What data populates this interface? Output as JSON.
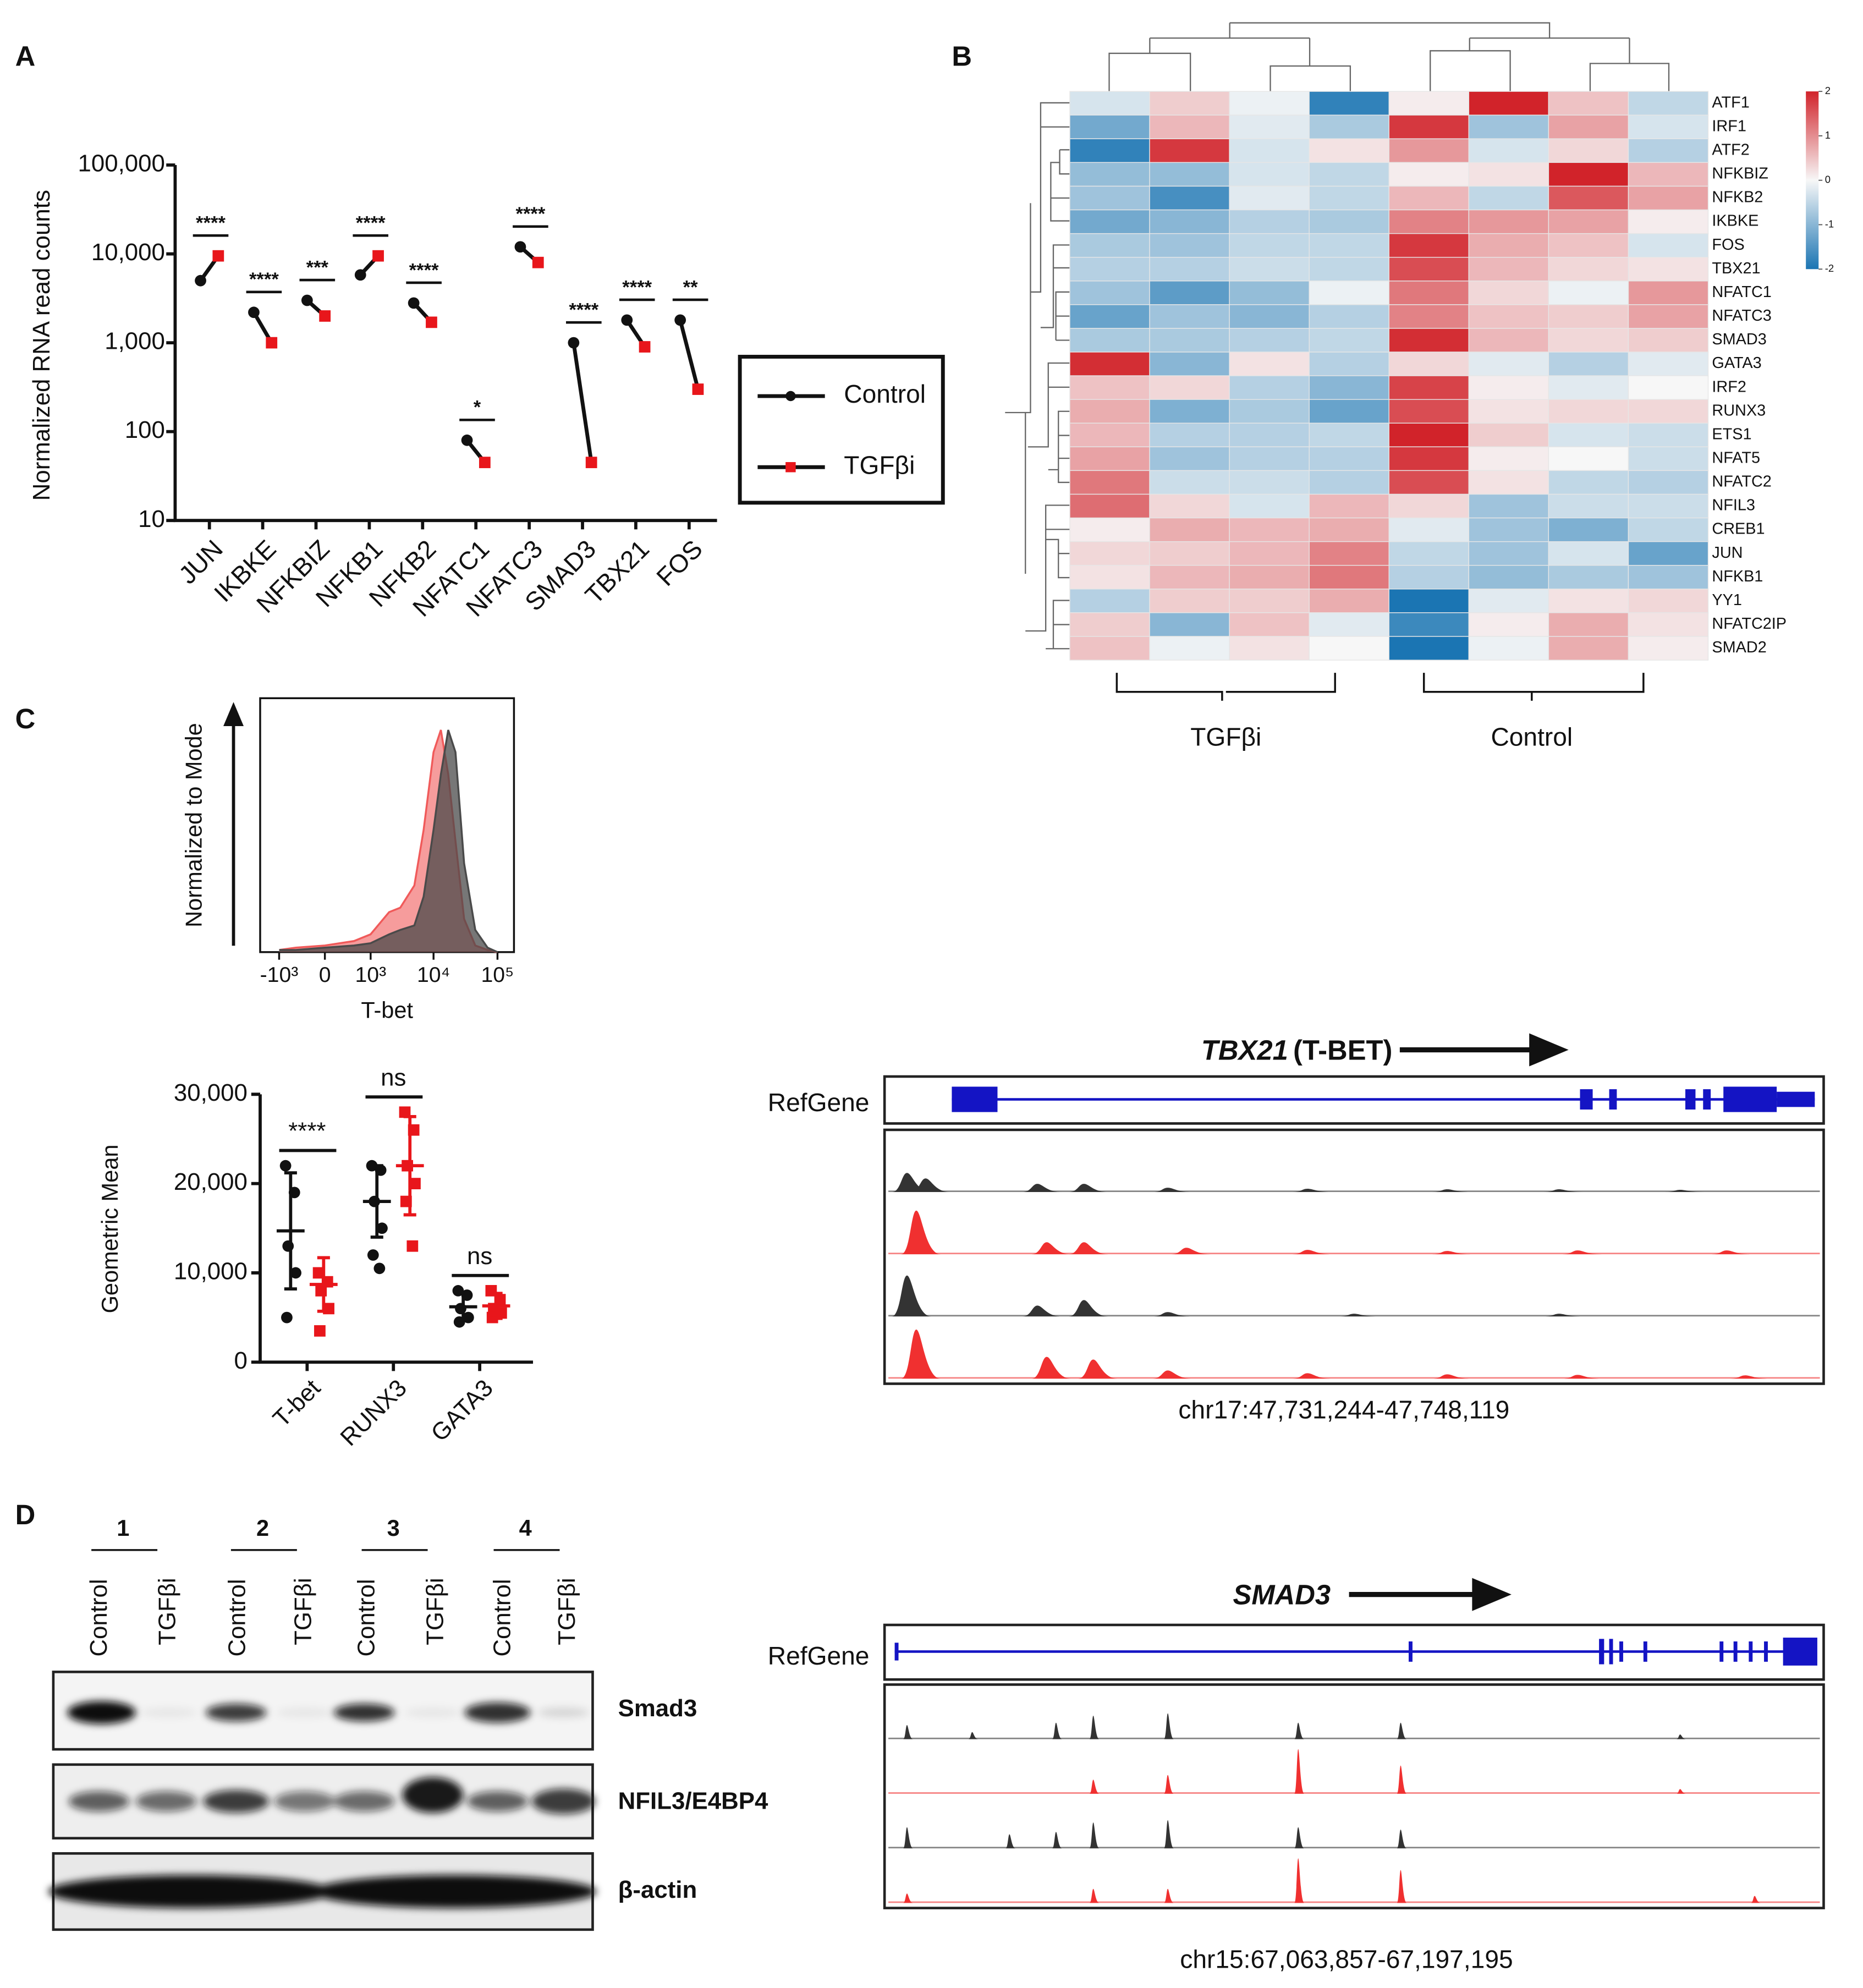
{
  "panels": [
    "A",
    "B",
    "C",
    "D"
  ],
  "chart_data": [
    {
      "type": "paired_dot",
      "ylabel": "Normalized RNA read counts",
      "log_scale": true,
      "categories": [
        "JUN",
        "IKBKE",
        "NFKBIZ",
        "NFKB1",
        "NFKB2",
        "NFATC1",
        "NFATC3",
        "SMAD3",
        "TBX21",
        "FOS"
      ],
      "series": [
        {
          "name": "Control",
          "color": "#111111",
          "values": [
            5000,
            2200,
            3000,
            5800,
            2800,
            80,
            12000,
            1000,
            1800,
            1800
          ]
        },
        {
          "name": "TGFβi",
          "color": "#e8161b",
          "values": [
            9500,
            1000,
            2000,
            9500,
            1700,
            45,
            8000,
            45,
            900,
            300
          ]
        }
      ],
      "significance": [
        "****",
        "****",
        "***",
        "****",
        "****",
        "*",
        "****",
        "****",
        "****",
        "**"
      ],
      "ylim": [
        10,
        100000
      ],
      "yticks": [
        10,
        100,
        {
          "value": 1000,
          "label": "1,000"
        },
        {
          "value": 10000,
          "label": "10,000"
        },
        {
          "value": 100000,
          "label": "100,000"
        }
      ]
    },
    {
      "type": "heatmap",
      "rows": [
        "ATF1",
        "IRF1",
        "ATF2",
        "NFKBIZ",
        "NFKB2",
        "IKBKE",
        "FOS",
        "TBX21",
        "NFATC1",
        "NFATC3",
        "SMAD3",
        "GATA3",
        "IRF2",
        "RUNX3",
        "ETS1",
        "NFAT5",
        "NFATC2",
        "NFIL3",
        "CREB1",
        "JUN",
        "NFKB1",
        "YY1",
        "NFATC2IP",
        "SMAD2"
      ],
      "values": [
        [
          -0.3,
          0.4,
          -0.1,
          -1.8,
          0.1,
          2.0,
          0.5,
          -0.5
        ],
        [
          -1.2,
          0.6,
          -0.2,
          -0.7,
          1.8,
          -0.8,
          0.8,
          -0.3
        ],
        [
          -1.8,
          1.8,
          -0.3,
          0.2,
          0.9,
          -0.3,
          0.3,
          -0.6
        ],
        [
          -0.9,
          -0.9,
          -0.3,
          -0.5,
          0.1,
          0.2,
          2.0,
          0.6
        ],
        [
          -0.8,
          -1.6,
          -0.2,
          -0.5,
          0.6,
          -0.5,
          1.5,
          0.8
        ],
        [
          -1.2,
          -1.0,
          -0.6,
          -0.7,
          1.1,
          0.9,
          0.8,
          0.1
        ],
        [
          -0.7,
          -0.8,
          -0.5,
          -0.5,
          1.8,
          0.7,
          0.5,
          -0.3
        ],
        [
          -0.6,
          -0.6,
          -0.4,
          -0.5,
          1.6,
          0.6,
          0.3,
          0.2
        ],
        [
          -0.8,
          -1.4,
          -0.9,
          -0.1,
          1.2,
          0.3,
          -0.1,
          0.9
        ],
        [
          -1.3,
          -0.8,
          -1.0,
          -0.6,
          1.1,
          0.5,
          0.4,
          0.8
        ],
        [
          -0.7,
          -0.7,
          -0.6,
          -0.5,
          1.9,
          0.6,
          0.3,
          0.4
        ],
        [
          1.9,
          -1.0,
          0.2,
          -0.6,
          0.3,
          -0.2,
          -0.6,
          -0.2
        ],
        [
          0.5,
          0.3,
          -0.6,
          -1.0,
          1.7,
          0.1,
          -0.2,
          0.0
        ],
        [
          0.7,
          -1.1,
          -0.7,
          -1.3,
          1.6,
          0.2,
          0.3,
          0.3
        ],
        [
          0.6,
          -0.6,
          -0.6,
          -0.5,
          2.0,
          0.4,
          -0.3,
          -0.4
        ],
        [
          0.8,
          -0.8,
          -0.6,
          -0.6,
          1.8,
          0.1,
          0.0,
          -0.4
        ],
        [
          1.2,
          -0.4,
          -0.4,
          -0.6,
          1.6,
          0.2,
          -0.5,
          -0.6
        ],
        [
          1.3,
          0.3,
          -0.3,
          0.6,
          0.3,
          -0.8,
          -0.4,
          -0.4
        ],
        [
          0.1,
          0.7,
          0.6,
          0.7,
          -0.2,
          -0.8,
          -1.1,
          -0.5
        ],
        [
          0.3,
          0.4,
          0.6,
          1.1,
          -0.5,
          -0.8,
          -0.3,
          -1.3
        ],
        [
          0.2,
          0.6,
          0.7,
          1.2,
          -0.6,
          -0.9,
          -0.7,
          -0.8
        ],
        [
          -0.6,
          0.4,
          0.4,
          0.7,
          -2.0,
          -0.2,
          0.2,
          0.3
        ],
        [
          0.4,
          -1.0,
          0.5,
          -0.2,
          -1.7,
          0.1,
          0.7,
          0.2
        ],
        [
          0.5,
          -0.1,
          0.2,
          0.0,
          -2.0,
          -0.1,
          0.7,
          0.1
        ]
      ],
      "clim": [
        -2,
        2
      ],
      "colorbar_ticks": [
        2,
        1,
        0,
        -1,
        -2
      ],
      "colors": {
        "low": "#1b75b3",
        "mid": "#f7f7f7",
        "high": "#d1232a"
      },
      "group_labels": [
        "TGFβi",
        "Control"
      ]
    },
    {
      "type": "density",
      "xlabel": "T-bet",
      "ylabel": "Normalized to Mode",
      "scale": "biexponential",
      "x": [
        -1000,
        -500,
        0,
        500,
        1000,
        2000,
        3000,
        5000,
        7000,
        10000,
        13000,
        17000,
        22000,
        30000,
        45000,
        70000,
        100000
      ],
      "series": [
        {
          "color": "#f05a5a",
          "values": [
            1,
            2,
            3,
            5,
            8,
            18,
            20,
            30,
            55,
            90,
            100,
            80,
            50,
            15,
            3,
            1,
            0
          ]
        },
        {
          "color": "#4a4a4a",
          "values": [
            1,
            1,
            2,
            3,
            4,
            8,
            10,
            12,
            25,
            55,
            80,
            100,
            90,
            40,
            10,
            2,
            0
          ]
        }
      ],
      "ylim": [
        0,
        100
      ],
      "xticks": [
        {
          "value": -1000,
          "label": "-10³"
        },
        0,
        {
          "value": 1000,
          "label": "10³"
        },
        {
          "value": 10000,
          "label": "10⁴"
        },
        {
          "value": 100000,
          "label": "10⁵"
        }
      ]
    },
    {
      "type": "dot_plot",
      "ylabel": "Geometric Mean",
      "categories": [
        "T-bet",
        "RUNX3",
        "GATA3"
      ],
      "series": [
        {
          "color": "#111111",
          "values": [
            14700,
            18000,
            6200
          ],
          "errors": [
            6500,
            4000,
            1500
          ],
          "points": [
            [
              22000,
              19000,
              13000,
              10000,
              5000
            ],
            [
              22000,
              21500,
              18000,
              15000,
              12000,
              10500
            ],
            [
              8000,
              7500,
              6000,
              5000,
              4500
            ]
          ]
        },
        {
          "color": "#e8161b",
          "values": [
            8700,
            22000,
            6300
          ],
          "errors": [
            3000,
            5500,
            1400
          ],
          "points": [
            [
              10000,
              9000,
              8000,
              6000,
              3500
            ],
            [
              28000,
              26000,
              22000,
              20000,
              18000,
              13000
            ],
            [
              8000,
              7000,
              6000,
              5500,
              5000
            ]
          ]
        }
      ],
      "significance": [
        "****",
        "ns",
        "ns"
      ],
      "ylim": [
        0,
        30000
      ],
      "yticks": [
        0,
        {
          "value": 10000,
          "label": "10,000"
        },
        {
          "value": 20000,
          "label": "20,000"
        },
        {
          "value": 30000,
          "label": "30,000"
        }
      ]
    }
  ],
  "genome_tracks": [
    {
      "gene": "TBX21",
      "gene_note": "(T-BET)",
      "annotation": "RefGene",
      "locus": "chr17:47,731,244-47,748,119",
      "tracks": [
        {
          "color": "#333333",
          "peaks": [
            [
              0.02,
              0.35
            ],
            [
              0.04,
              0.25
            ],
            [
              0.16,
              0.15
            ],
            [
              0.21,
              0.15
            ],
            [
              0.3,
              0.08
            ],
            [
              0.45,
              0.06
            ],
            [
              0.6,
              0.05
            ],
            [
              0.72,
              0.05
            ],
            [
              0.85,
              0.04
            ]
          ]
        },
        {
          "color": "#f03030",
          "peaks": [
            [
              0.03,
              0.8
            ],
            [
              0.17,
              0.22
            ],
            [
              0.21,
              0.22
            ],
            [
              0.32,
              0.12
            ],
            [
              0.45,
              0.08
            ],
            [
              0.6,
              0.06
            ],
            [
              0.74,
              0.07
            ],
            [
              0.9,
              0.07
            ]
          ]
        },
        {
          "color": "#333333",
          "peaks": [
            [
              0.02,
              0.75
            ],
            [
              0.16,
              0.2
            ],
            [
              0.21,
              0.3
            ],
            [
              0.3,
              0.08
            ],
            [
              0.5,
              0.05
            ],
            [
              0.72,
              0.05
            ]
          ]
        },
        {
          "color": "#f03030",
          "peaks": [
            [
              0.03,
              0.9
            ],
            [
              0.17,
              0.4
            ],
            [
              0.22,
              0.35
            ],
            [
              0.3,
              0.15
            ],
            [
              0.45,
              0.1
            ],
            [
              0.6,
              0.08
            ],
            [
              0.74,
              0.07
            ],
            [
              0.92,
              0.06
            ]
          ]
        }
      ]
    },
    {
      "gene": "SMAD3",
      "annotation": "RefGene",
      "locus": "chr15:67,063,857-67,197,195",
      "tracks": [
        {
          "color": "#333333",
          "peaks": [
            [
              0.02,
              0.3
            ],
            [
              0.09,
              0.15
            ],
            [
              0.18,
              0.35
            ],
            [
              0.22,
              0.5
            ],
            [
              0.3,
              0.55
            ],
            [
              0.44,
              0.35
            ],
            [
              0.55,
              0.35
            ],
            [
              0.85,
              0.1
            ]
          ]
        },
        {
          "color": "#f03030",
          "peaks": [
            [
              0.22,
              0.3
            ],
            [
              0.3,
              0.4
            ],
            [
              0.44,
              0.95
            ],
            [
              0.55,
              0.6
            ],
            [
              0.85,
              0.1
            ]
          ]
        },
        {
          "color": "#333333",
          "peaks": [
            [
              0.02,
              0.45
            ],
            [
              0.13,
              0.3
            ],
            [
              0.18,
              0.35
            ],
            [
              0.22,
              0.55
            ],
            [
              0.3,
              0.6
            ],
            [
              0.44,
              0.45
            ],
            [
              0.55,
              0.4
            ]
          ]
        },
        {
          "color": "#f03030",
          "peaks": [
            [
              0.02,
              0.2
            ],
            [
              0.22,
              0.3
            ],
            [
              0.3,
              0.3
            ],
            [
              0.44,
              0.95
            ],
            [
              0.55,
              0.7
            ],
            [
              0.93,
              0.15
            ]
          ]
        }
      ]
    }
  ],
  "blot": {
    "groups": [
      "1",
      "2",
      "3",
      "4"
    ],
    "lanes": [
      "Control",
      "TGFβi",
      "Control",
      "TGFβi",
      "Control",
      "TGFβi",
      "Control",
      "TGFβi"
    ],
    "rows": [
      "Smad3",
      "NFIL3/E4BP4",
      "β-actin"
    ]
  }
}
